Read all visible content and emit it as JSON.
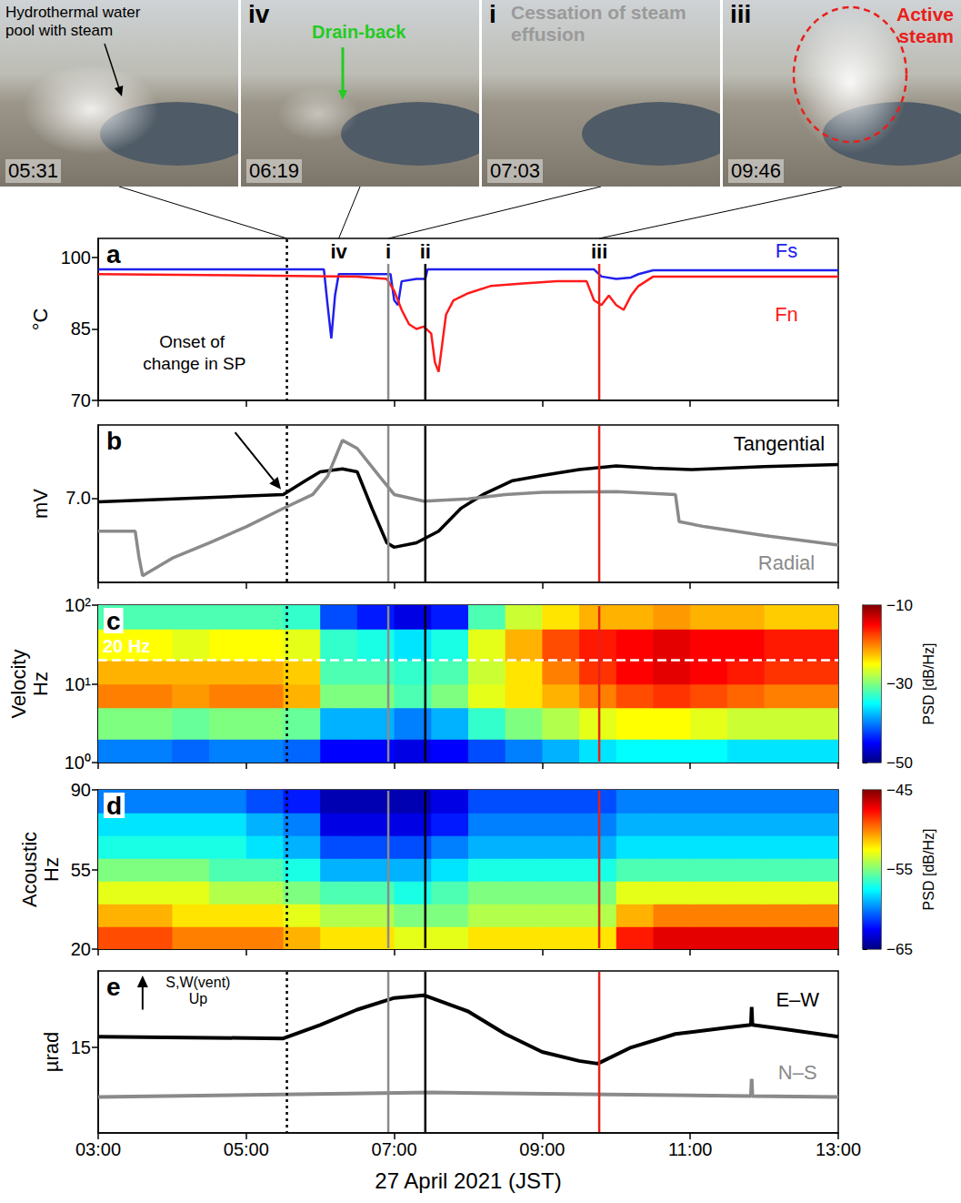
{
  "photos": [
    {
      "caption": "Hydrothermal water pool with steam",
      "color": "#000000",
      "time_label": "05:31",
      "link_time": 5.55
    },
    {
      "tag": "iv",
      "caption": "Drain-back",
      "color": "#22cc22",
      "time_label": "06:19",
      "link_time": 6.25
    },
    {
      "tag": "i",
      "caption": "Cessation of steam effusion",
      "color": "#9a9a9a",
      "time_label": "07:03",
      "link_time": 6.92
    },
    {
      "tag": "iii",
      "caption": "Active steam",
      "color": "#e8201a",
      "time_label": "09:46",
      "link_time": 9.77
    }
  ],
  "x_axis": {
    "xlabel": "27 April 2021 (JST)",
    "xlim": [
      3,
      13
    ],
    "xticks": [
      {
        "value": 3,
        "label": "03:00"
      },
      {
        "value": 5,
        "label": "05:00"
      },
      {
        "value": 7,
        "label": "07:00"
      },
      {
        "value": 9,
        "label": "09:00"
      },
      {
        "value": 11,
        "label": "11:00"
      },
      {
        "value": 13,
        "label": "13:00"
      }
    ]
  },
  "markers": [
    {
      "time": 5.55,
      "color": "#000000",
      "line_style": "dotted"
    },
    {
      "time": 6.25,
      "label": "iv"
    },
    {
      "time": 6.92,
      "label": "i",
      "color": "#8c8c8c",
      "line_style": "solid"
    },
    {
      "time": 7.42,
      "label": "ii",
      "color": "#000000",
      "line_style": "solid"
    },
    {
      "time": 9.77,
      "label": "iii",
      "color": "#e8201a",
      "line_style": "solid"
    }
  ],
  "annotations": [
    {
      "panel": "a",
      "text": "Onset of change in SP",
      "x": 4.3,
      "y": 80,
      "arrow": {
        "panel": "b",
        "from": [
          4.85,
          7.9
        ],
        "to": [
          5.47,
          7.12
        ]
      }
    },
    {
      "panel": "e",
      "text": "S,W(vent)\nUp",
      "x": 4.35,
      "y": 21.3,
      "arrow": {
        "panel": "e",
        "from": [
          3.6,
          19.2
        ],
        "to": [
          3.6,
          23
        ]
      }
    }
  ],
  "chart_data": [
    {
      "panel": "a",
      "type": "line",
      "ylabel": "°C",
      "ylim": [
        70,
        104
      ],
      "yticks": [
        70,
        85,
        100
      ],
      "tick_labels": "y",
      "series": [
        {
          "name": "Fs",
          "color": "#2020ee",
          "label_at": [
            12.3,
            101.5
          ],
          "x": [
            3,
            6.05,
            6.1,
            6.15,
            6.2,
            6.25,
            6.5,
            6.95,
            7.0,
            7.05,
            7.1,
            7.3,
            7.42,
            7.45,
            7.6,
            9.7,
            9.8,
            10.0,
            10.2,
            10.3,
            10.5,
            13
          ],
          "values": [
            97.5,
            97.5,
            90,
            83,
            92,
            96.5,
            96.5,
            96.5,
            91,
            90,
            95,
            95.5,
            95.5,
            97.5,
            97.5,
            97.5,
            96,
            95.5,
            95.8,
            96.5,
            97.3,
            97.3
          ]
        },
        {
          "name": "Fn",
          "color": "#ff1a1a",
          "label_at": [
            12.3,
            88
          ],
          "x": [
            3,
            6.5,
            6.9,
            7.0,
            7.1,
            7.2,
            7.3,
            7.4,
            7.5,
            7.55,
            7.6,
            7.65,
            7.7,
            7.8,
            8.0,
            8.3,
            8.7,
            9.2,
            9.6,
            9.7,
            9.8,
            9.9,
            10.0,
            10.1,
            10.2,
            10.3,
            10.5,
            13
          ],
          "values": [
            96.5,
            96,
            95.5,
            93,
            89,
            86,
            85,
            85.5,
            84,
            78,
            76,
            82,
            88,
            91,
            92.5,
            94,
            94.5,
            95,
            95,
            91,
            90,
            92,
            90,
            89,
            92,
            94,
            96,
            96
          ]
        }
      ]
    },
    {
      "panel": "b",
      "type": "line",
      "ylabel": "mV",
      "ylim": [
        5.85,
        8.0
      ],
      "yticks": [
        {
          "value": 7,
          "label": "7.0"
        }
      ],
      "tick_labels": "y",
      "series": [
        {
          "name": "Tangential",
          "color": "#000000",
          "label_at": [
            12.2,
            7.75
          ],
          "x": [
            3,
            4.5,
            5.5,
            5.8,
            6.0,
            6.3,
            6.5,
            6.7,
            6.9,
            7.0,
            7.3,
            7.6,
            7.9,
            8.2,
            8.6,
            9.0,
            9.5,
            10.0,
            10.5,
            11,
            12,
            13
          ],
          "values": [
            6.95,
            7.01,
            7.05,
            7.24,
            7.36,
            7.4,
            7.36,
            6.86,
            6.39,
            6.33,
            6.39,
            6.55,
            6.86,
            7.05,
            7.24,
            7.31,
            7.39,
            7.44,
            7.41,
            7.39,
            7.43,
            7.46
          ]
        },
        {
          "name": "Radial",
          "color": "#8a8a8a",
          "label_at": [
            12.3,
            6.12
          ],
          "x": [
            3,
            3.5,
            3.55,
            3.6,
            4.0,
            4.5,
            5.0,
            5.5,
            5.9,
            6.1,
            6.3,
            6.5,
            6.8,
            7.0,
            7.4,
            8.0,
            8.5,
            9.0,
            10.0,
            10.8,
            10.85,
            11.2,
            12,
            13
          ],
          "values": [
            6.55,
            6.55,
            6.2,
            5.94,
            6.18,
            6.39,
            6.61,
            6.86,
            7.05,
            7.3,
            7.79,
            7.68,
            7.3,
            7.05,
            6.96,
            6.99,
            7.05,
            7.08,
            7.09,
            7.05,
            6.68,
            6.61,
            6.49,
            6.36
          ]
        }
      ]
    },
    {
      "panel": "c",
      "type": "spectrogram",
      "ylabel": "Velocity\nHz",
      "log": "y",
      "ylim": [
        1,
        100
      ],
      "yticks": [
        {
          "value": 1,
          "label": "10⁰"
        },
        {
          "value": 10,
          "label": "10¹"
        },
        {
          "value": 100,
          "label": "10²"
        }
      ],
      "tick_labels": "y",
      "reference_line": {
        "value": 20,
        "label": "20 Hz"
      },
      "colorbar": {
        "label": "PSD [dB/Hz]",
        "range": [
          -50,
          -10
        ],
        "ticks": [
          {
            "value": -10,
            "label": "−10"
          },
          {
            "value": -30,
            "label": "−30"
          },
          {
            "value": -50,
            "label": "−50"
          }
        ],
        "colors": [
          "#00007f",
          "#0000ff",
          "#007fff",
          "#00ffff",
          "#7fff7f",
          "#ffff00",
          "#ff7f00",
          "#ff0000",
          "#7f0000"
        ]
      },
      "time_edges": [
        3,
        3.5,
        4,
        4.5,
        5,
        5.5,
        6,
        6.5,
        7,
        7.5,
        8,
        8.5,
        9,
        9.5,
        10,
        10.5,
        11,
        11.5,
        12,
        12.5,
        13
      ],
      "freq_edges": [
        1,
        2,
        5,
        10,
        20,
        50,
        100
      ],
      "psd": [
        [
          -40,
          -40,
          -41,
          -40,
          -40,
          -41,
          -45,
          -45,
          -46,
          -45,
          -42,
          -40,
          -38,
          -36,
          -35,
          -35,
          -35,
          -36,
          -36,
          -36
        ],
        [
          -30,
          -30,
          -31,
          -30,
          -30,
          -31,
          -38,
          -38,
          -40,
          -38,
          -33,
          -30,
          -28,
          -26,
          -25,
          -25,
          -26,
          -27,
          -27,
          -27
        ],
        [
          -20,
          -20,
          -21,
          -20,
          -20,
          -22,
          -30,
          -30,
          -32,
          -30,
          -26,
          -24,
          -22,
          -20,
          -18,
          -17,
          -18,
          -19,
          -20,
          -20
        ],
        [
          -22,
          -22,
          -22,
          -22,
          -22,
          -23,
          -32,
          -32,
          -33,
          -32,
          -27,
          -24,
          -20,
          -17,
          -15,
          -14,
          -15,
          -16,
          -17,
          -17
        ],
        [
          -25,
          -25,
          -26,
          -25,
          -25,
          -26,
          -33,
          -34,
          -36,
          -34,
          -26,
          -22,
          -18,
          -16,
          -15,
          -14,
          -15,
          -15,
          -16,
          -16
        ],
        [
          -32,
          -32,
          -32,
          -32,
          -32,
          -33,
          -42,
          -44,
          -46,
          -44,
          -32,
          -27,
          -24,
          -22,
          -22,
          -21,
          -22,
          -22,
          -23,
          -23
        ]
      ]
    },
    {
      "panel": "d",
      "type": "spectrogram",
      "ylabel": "Acoustic\nHz",
      "ylim": [
        20,
        90
      ],
      "yticks": [
        20,
        55,
        90
      ],
      "tick_labels": "y",
      "colorbar": {
        "label": "PSD [dB/Hz]",
        "range": [
          -65,
          -45
        ],
        "ticks": [
          {
            "value": -45,
            "label": "−45"
          },
          {
            "value": -55,
            "label": "−55"
          },
          {
            "value": -65,
            "label": "−65"
          }
        ],
        "colors": [
          "#00007f",
          "#0000ff",
          "#007fff",
          "#00ffff",
          "#7fff7f",
          "#ffff00",
          "#ff7f00",
          "#ff0000",
          "#7f0000"
        ]
      },
      "time_edges": [
        3,
        3.5,
        4,
        4.5,
        5,
        5.5,
        6,
        6.5,
        7,
        7.5,
        8,
        8.5,
        9,
        9.5,
        10,
        10.5,
        11,
        11.5,
        12,
        12.5,
        13
      ],
      "freq_edges": [
        20,
        30,
        40,
        50,
        60,
        70,
        80,
        90
      ],
      "psd": [
        [
          -49,
          -49,
          -50,
          -50,
          -50,
          -51,
          -52,
          -52,
          -53,
          -53,
          -52,
          -52,
          -52,
          -52,
          -48,
          -47,
          -47,
          -47,
          -47,
          -47
        ],
        [
          -51,
          -51,
          -52,
          -52,
          -52,
          -53,
          -54,
          -54,
          -55,
          -55,
          -54,
          -54,
          -54,
          -54,
          -51,
          -50,
          -50,
          -50,
          -50,
          -50
        ],
        [
          -53,
          -53,
          -53,
          -54,
          -54,
          -55,
          -56,
          -56,
          -57,
          -56,
          -55,
          -55,
          -55,
          -55,
          -53,
          -53,
          -53,
          -53,
          -53,
          -53
        ],
        [
          -55,
          -55,
          -55,
          -56,
          -56,
          -57,
          -59,
          -59,
          -59,
          -58,
          -57,
          -57,
          -57,
          -57,
          -56,
          -56,
          -56,
          -56,
          -56,
          -56
        ],
        [
          -57,
          -57,
          -57,
          -57,
          -58,
          -59,
          -61,
          -61,
          -61,
          -60,
          -59,
          -59,
          -59,
          -59,
          -58,
          -58,
          -58,
          -58,
          -58,
          -58
        ],
        [
          -58,
          -58,
          -58,
          -58,
          -59,
          -60,
          -63,
          -63,
          -63,
          -62,
          -60,
          -60,
          -60,
          -60,
          -59,
          -59,
          -59,
          -59,
          -59,
          -59
        ],
        [
          -60,
          -60,
          -60,
          -60,
          -61,
          -62,
          -64,
          -64,
          -64,
          -63,
          -61,
          -61,
          -61,
          -61,
          -60,
          -60,
          -60,
          -60,
          -60,
          -60
        ]
      ]
    },
    {
      "panel": "e",
      "type": "line",
      "ylabel": "µrad",
      "ylim": [
        5.5,
        23.5
      ],
      "yticks": [
        15
      ],
      "series": [
        {
          "name": "E–W",
          "color": "#000000",
          "label_at": [
            12.45,
            20.3
          ],
          "x": [
            3,
            5.5,
            6.0,
            6.5,
            7.0,
            7.4,
            8.0,
            8.5,
            9.0,
            9.5,
            9.75,
            10.2,
            10.8,
            11.5,
            11.82,
            11.83,
            11.84,
            12.3,
            13
          ],
          "values": [
            16.2,
            16.0,
            17.5,
            19.2,
            20.5,
            20.8,
            19.0,
            16.5,
            14.5,
            13.5,
            13.2,
            15.0,
            16.5,
            17.2,
            17.5,
            19.5,
            17.5,
            17.0,
            16.2
          ]
        },
        {
          "name": "N–S",
          "color": "#8a8a8a",
          "label_at": [
            12.45,
            12.2
          ],
          "x": [
            3,
            7.5,
            11.82,
            11.83,
            11.84,
            13
          ],
          "values": [
            9.5,
            10.0,
            9.6,
            11.5,
            9.6,
            9.5
          ]
        }
      ]
    }
  ]
}
